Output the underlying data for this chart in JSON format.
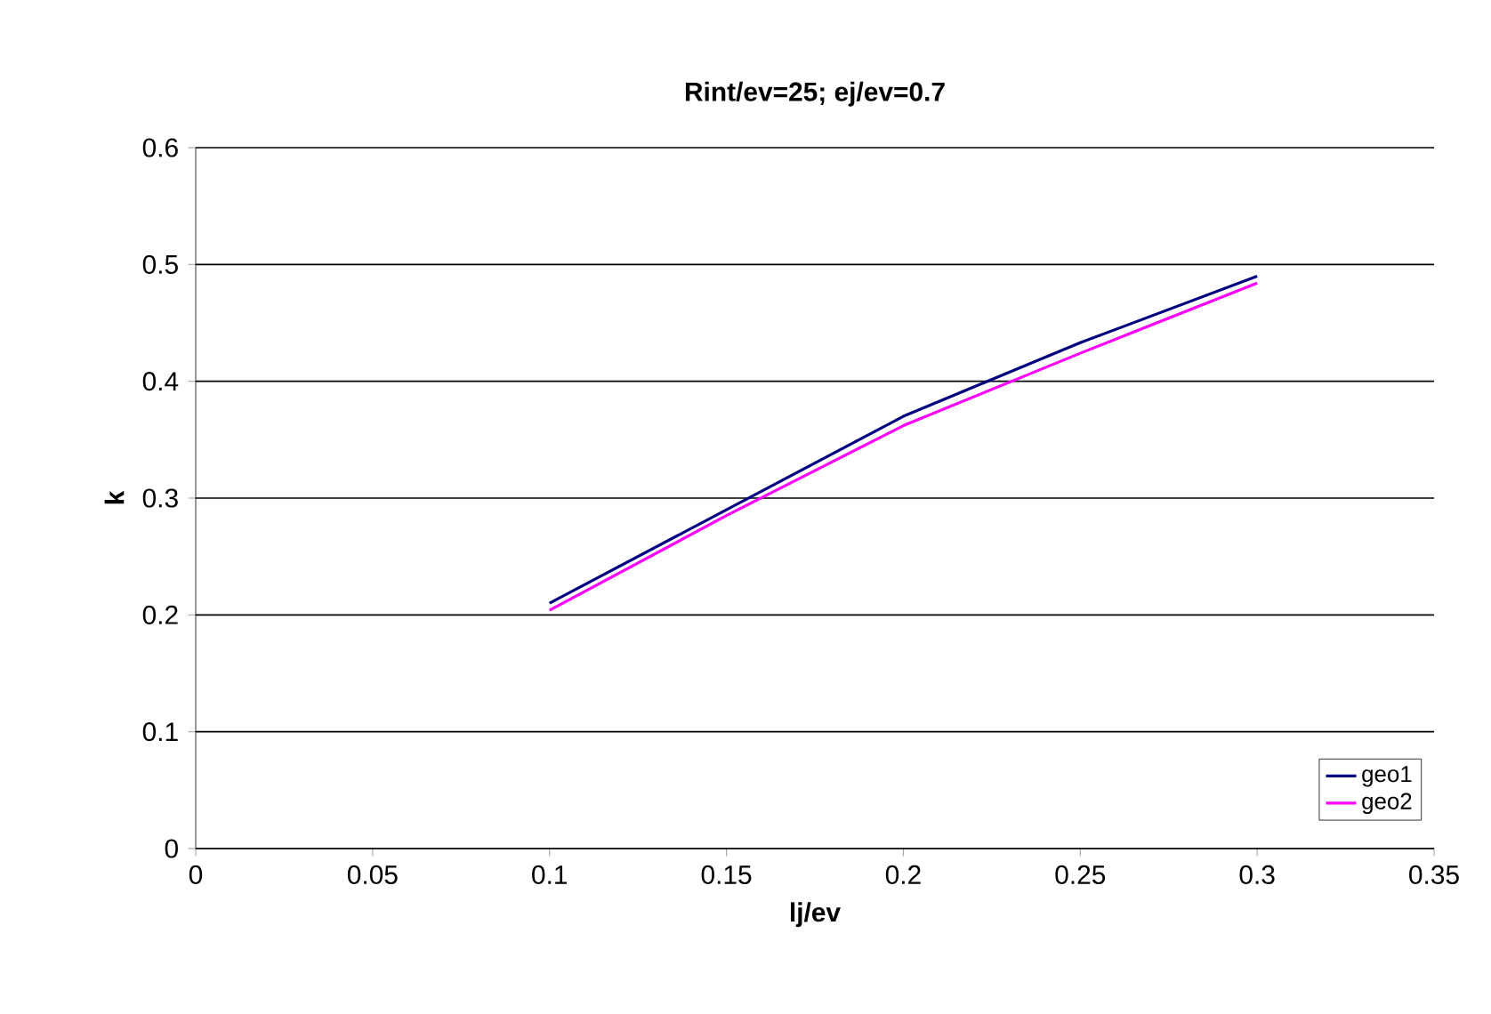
{
  "chart_data": {
    "type": "line",
    "title": "Rint/ev=25; ej/ev=0.7",
    "xlabel": "lj/ev",
    "ylabel": "k",
    "x": [
      0.1,
      0.15,
      0.2,
      0.25,
      0.3
    ],
    "series": [
      {
        "name": "geo1",
        "color": "#000080",
        "values": [
          0.21,
          0.29,
          0.37,
          0.433,
          0.49
        ]
      },
      {
        "name": "geo2",
        "color": "#ff00ff",
        "values": [
          0.204,
          0.285,
          0.362,
          0.424,
          0.484
        ]
      }
    ],
    "xlim": [
      0,
      0.35
    ],
    "ylim": [
      0,
      0.6
    ],
    "xticks": [
      0,
      0.05,
      0.1,
      0.15,
      0.2,
      0.25,
      0.3,
      0.35
    ],
    "yticks": [
      0,
      0.1,
      0.2,
      0.3,
      0.4,
      0.5,
      0.6
    ],
    "grid": "y",
    "legend": "bottom right",
    "marker": "none",
    "line_style": "solid"
  }
}
